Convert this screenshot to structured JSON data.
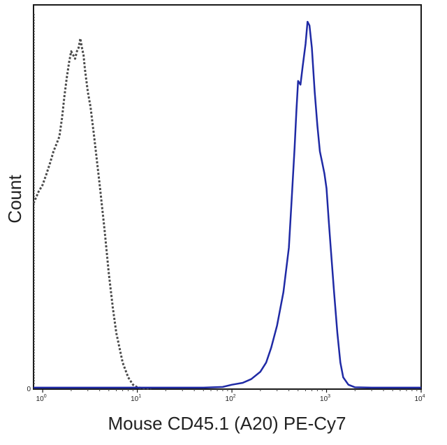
{
  "chart_data": {
    "type": "line",
    "title": "",
    "xlabel": "Mouse CD45.1 (A20) PE-Cy7",
    "ylabel": "Count",
    "xscale": "log",
    "xlim": [
      0.8,
      10000
    ],
    "ylim": [
      0,
      100
    ],
    "x_ticks": [
      {
        "value": 1,
        "base": "10",
        "exp": "0"
      },
      {
        "value": 10,
        "base": "10",
        "exp": "1"
      },
      {
        "value": 100,
        "base": "10",
        "exp": "2"
      },
      {
        "value": 1000,
        "base": "10",
        "exp": "3"
      },
      {
        "value": 10000,
        "base": "10",
        "exp": "4"
      }
    ],
    "y_ticks": [
      {
        "value": 0,
        "label": "0"
      }
    ],
    "grid": false,
    "legend": "none",
    "series": [
      {
        "style": "dashed",
        "color": "#4a4a4a",
        "x": [
          0.8,
          0.85,
          0.9,
          1.0,
          1.1,
          1.2,
          1.3,
          1.4,
          1.5,
          1.6,
          1.7,
          1.8,
          1.9,
          2.0,
          2.1,
          2.2,
          2.3,
          2.4,
          2.5,
          2.6,
          2.7,
          2.8,
          3.0,
          3.2,
          3.5,
          4.0,
          4.5,
          5.0,
          5.5,
          6.0,
          7.0,
          8.0,
          9.0,
          10.0,
          11.0,
          12.0,
          14.0
        ],
        "y": [
          50,
          51.5,
          53,
          55,
          58,
          61,
          64,
          66,
          68,
          73,
          79,
          84,
          88,
          91,
          90,
          89,
          91,
          92,
          94.5,
          92,
          90,
          86,
          80,
          76,
          68,
          55,
          43,
          31,
          22,
          15,
          7,
          3,
          1,
          0.3,
          0.1,
          0,
          0
        ]
      },
      {
        "style": "solid",
        "color": "#1f2aa5",
        "x": [
          0.8,
          10,
          50,
          80,
          100,
          130,
          160,
          200,
          230,
          260,
          300,
          350,
          400,
          430,
          460,
          480,
          500,
          530,
          560,
          600,
          630,
          660,
          700,
          750,
          800,
          850,
          900,
          950,
          1000,
          1050,
          1100,
          1200,
          1300,
          1400,
          1500,
          1700,
          2000,
          3000,
          10000
        ],
        "y": [
          0.2,
          0.2,
          0.2,
          0.4,
          1,
          1.5,
          2.5,
          4.5,
          7,
          11,
          17,
          26,
          38,
          52,
          65,
          75,
          83,
          82,
          87,
          93,
          99,
          98,
          92,
          80,
          71,
          64,
          61,
          58,
          54,
          46,
          39,
          26,
          15,
          7,
          3,
          1,
          0.3,
          0.2,
          0.2
        ]
      }
    ]
  }
}
